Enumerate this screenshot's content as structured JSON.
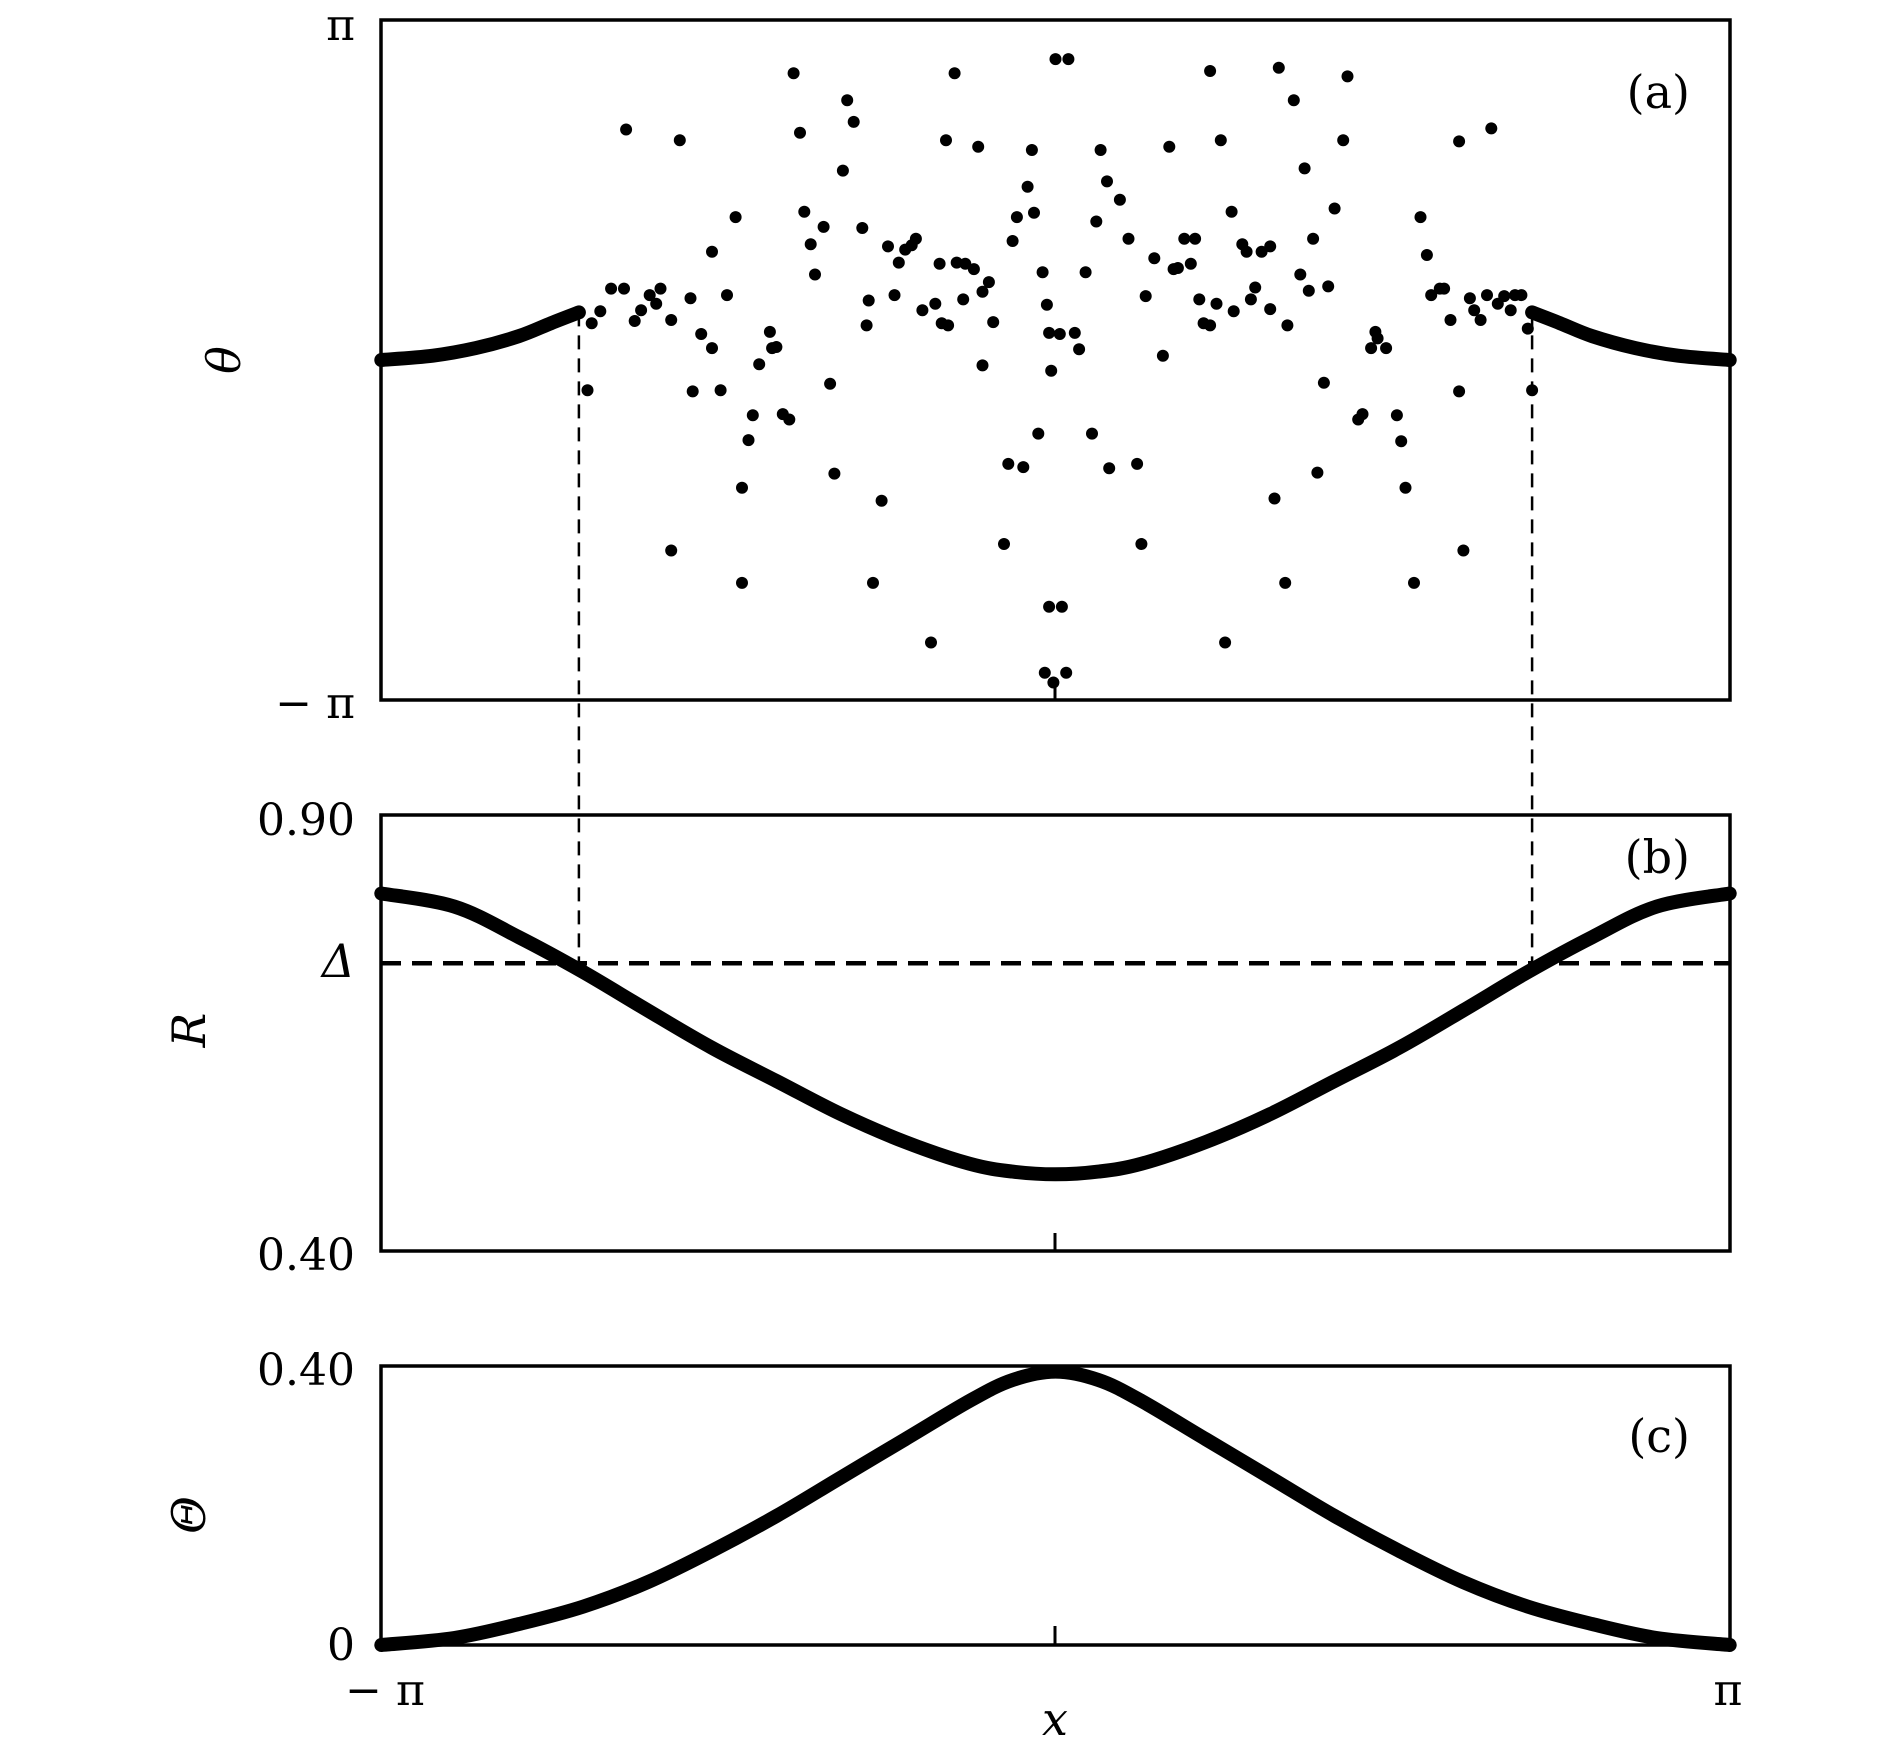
{
  "chart_data": [
    {
      "panel": "(a)",
      "type": "scatter",
      "ylabel": "θ",
      "xlabel": "",
      "yticks": [
        "π",
        "− π"
      ],
      "ylim": [
        -3.14159,
        3.14159
      ],
      "xlim": [
        -3.14159,
        3.14159
      ],
      "series": [
        {
          "kind": "line",
          "x": [
            -3.14,
            -2.9,
            -2.7,
            -2.5,
            -2.35,
            -2.22
          ],
          "y": [
            0.0,
            0.04,
            0.11,
            0.22,
            0.34,
            0.44
          ]
        },
        {
          "kind": "line",
          "x": [
            2.22,
            2.35,
            2.5,
            2.7,
            2.9,
            3.14
          ],
          "y": [
            0.44,
            0.34,
            0.22,
            0.11,
            0.04,
            0.0
          ]
        },
        {
          "kind": "points",
          "points": [
            [
              -2.18,
              -0.28
            ],
            [
              -2.16,
              0.34
            ],
            [
              -2.12,
              0.45
            ],
            [
              -2.07,
              0.66
            ],
            [
              -2.01,
              0.66
            ],
            [
              -2.0,
              2.13
            ],
            [
              -1.96,
              0.36
            ],
            [
              -1.93,
              0.46
            ],
            [
              -1.89,
              0.6
            ],
            [
              -1.86,
              0.52
            ],
            [
              -1.84,
              0.66
            ],
            [
              -1.79,
              0.37
            ],
            [
              -1.79,
              -1.76
            ],
            [
              -1.75,
              2.03
            ],
            [
              -1.7,
              0.57
            ],
            [
              -1.69,
              -0.29
            ],
            [
              -1.65,
              0.24
            ],
            [
              -1.6,
              1.0
            ],
            [
              -1.6,
              0.11
            ],
            [
              -1.56,
              -0.28
            ],
            [
              -1.53,
              0.6
            ],
            [
              -1.49,
              1.32
            ],
            [
              -1.46,
              -2.06
            ],
            [
              -1.46,
              -1.18
            ],
            [
              -1.43,
              -0.74
            ],
            [
              -1.41,
              -0.51
            ],
            [
              -1.38,
              -0.04
            ],
            [
              -1.32,
              0.11
            ],
            [
              -1.33,
              0.26
            ],
            [
              -1.3,
              0.12
            ],
            [
              -1.27,
              -0.5
            ],
            [
              -1.24,
              -0.55
            ],
            [
              -1.22,
              2.65
            ],
            [
              -1.19,
              2.1
            ],
            [
              -1.17,
              1.37
            ],
            [
              -1.14,
              1.07
            ],
            [
              -1.12,
              0.79
            ],
            [
              -1.08,
              1.23
            ],
            [
              -1.05,
              -0.22
            ],
            [
              -1.03,
              -1.05
            ],
            [
              -0.99,
              1.75
            ],
            [
              -0.97,
              2.4
            ],
            [
              -0.94,
              2.2
            ],
            [
              -0.9,
              1.22
            ],
            [
              -0.88,
              0.32
            ],
            [
              -0.87,
              0.55
            ],
            [
              -0.85,
              -2.06
            ],
            [
              -0.81,
              -1.3
            ],
            [
              -0.78,
              1.05
            ],
            [
              -0.75,
              0.6
            ],
            [
              -0.73,
              0.9
            ],
            [
              -0.7,
              1.02
            ],
            [
              -0.67,
              1.06
            ],
            [
              -0.65,
              1.12
            ],
            [
              -0.62,
              0.46
            ],
            [
              -0.58,
              -2.61
            ],
            [
              -0.56,
              0.52
            ],
            [
              -0.54,
              0.89
            ],
            [
              -0.53,
              0.34
            ],
            [
              -0.51,
              2.03
            ],
            [
              -0.5,
              0.32
            ],
            [
              -0.47,
              2.65
            ],
            [
              -0.46,
              0.9
            ],
            [
              -0.43,
              0.56
            ],
            [
              -0.42,
              0.89
            ],
            [
              -0.38,
              0.84
            ],
            [
              -0.36,
              1.97
            ],
            [
              -0.34,
              0.63
            ],
            [
              -0.34,
              -0.05
            ],
            [
              -0.31,
              0.72
            ],
            [
              -0.29,
              0.35
            ],
            [
              -0.24,
              -1.7
            ],
            [
              -0.22,
              -0.96
            ],
            [
              -0.2,
              1.1
            ],
            [
              -0.18,
              1.32
            ],
            [
              -0.15,
              -0.99
            ],
            [
              -0.13,
              1.6
            ],
            [
              -0.11,
              1.94
            ],
            [
              -0.1,
              1.36
            ],
            [
              -0.08,
              -0.68
            ],
            [
              -0.06,
              0.81
            ],
            [
              -0.04,
              0.51
            ],
            [
              -0.03,
              0.25
            ],
            [
              -0.02,
              -0.1
            ],
            [
              0.0,
              2.78
            ],
            [
              0.02,
              0.24
            ],
            [
              -0.03,
              -2.28
            ],
            [
              0.03,
              -2.28
            ],
            [
              -0.05,
              -2.89
            ],
            [
              0.05,
              -2.89
            ],
            [
              -0.01,
              -2.98
            ],
            [
              0.06,
              2.78
            ],
            [
              0.09,
              0.25
            ],
            [
              0.11,
              0.1
            ],
            [
              0.14,
              0.81
            ],
            [
              0.17,
              -0.68
            ],
            [
              0.19,
              1.28
            ],
            [
              0.21,
              1.94
            ],
            [
              0.24,
              1.65
            ],
            [
              0.25,
              -1.0
            ],
            [
              0.3,
              1.48
            ],
            [
              0.34,
              1.12
            ],
            [
              0.38,
              -0.96
            ],
            [
              0.4,
              -1.7
            ],
            [
              0.42,
              0.59
            ],
            [
              0.46,
              0.94
            ],
            [
              0.5,
              0.04
            ],
            [
              0.53,
              1.97
            ],
            [
              0.55,
              0.84
            ],
            [
              0.57,
              0.85
            ],
            [
              0.6,
              1.12
            ],
            [
              0.63,
              0.89
            ],
            [
              0.65,
              1.12
            ],
            [
              0.67,
              0.56
            ],
            [
              0.69,
              0.34
            ],
            [
              0.72,
              2.67
            ],
            [
              0.72,
              0.32
            ],
            [
              0.75,
              0.52
            ],
            [
              0.77,
              2.03
            ],
            [
              0.79,
              -2.61
            ],
            [
              0.82,
              1.37
            ],
            [
              0.83,
              0.45
            ],
            [
              0.87,
              1.07
            ],
            [
              0.89,
              1.0
            ],
            [
              0.91,
              0.56
            ],
            [
              0.93,
              0.67
            ],
            [
              0.96,
              1.0
            ],
            [
              1.0,
              0.47
            ],
            [
              1.0,
              1.05
            ],
            [
              1.02,
              -1.28
            ],
            [
              1.04,
              2.7
            ],
            [
              1.07,
              -2.06
            ],
            [
              1.08,
              0.32
            ],
            [
              1.11,
              2.4
            ],
            [
              1.14,
              0.79
            ],
            [
              1.16,
              1.77
            ],
            [
              1.18,
              0.64
            ],
            [
              1.2,
              1.12
            ],
            [
              1.22,
              -1.04
            ],
            [
              1.25,
              -0.21
            ],
            [
              1.27,
              0.68
            ],
            [
              1.3,
              1.4
            ],
            [
              1.34,
              2.03
            ],
            [
              1.36,
              2.62
            ],
            [
              1.41,
              -0.55
            ],
            [
              1.43,
              -0.5
            ],
            [
              1.47,
              0.11
            ],
            [
              1.49,
              0.26
            ],
            [
              1.5,
              0.2
            ],
            [
              1.54,
              0.11
            ],
            [
              1.59,
              -0.51
            ],
            [
              1.61,
              -0.75
            ],
            [
              1.63,
              -1.18
            ],
            [
              1.67,
              -2.06
            ],
            [
              1.7,
              1.32
            ],
            [
              1.73,
              0.97
            ],
            [
              1.75,
              0.6
            ],
            [
              1.79,
              0.66
            ],
            [
              1.81,
              0.66
            ],
            [
              1.84,
              0.37
            ],
            [
              1.88,
              2.02
            ],
            [
              1.88,
              -0.29
            ],
            [
              1.9,
              -1.76
            ],
            [
              1.93,
              0.57
            ],
            [
              1.95,
              0.46
            ],
            [
              1.98,
              0.37
            ],
            [
              2.01,
              0.6
            ],
            [
              2.03,
              2.14
            ],
            [
              2.06,
              0.52
            ],
            [
              2.09,
              0.59
            ],
            [
              2.12,
              0.46
            ],
            [
              2.14,
              0.6
            ],
            [
              2.17,
              0.6
            ],
            [
              2.2,
              0.29
            ],
            [
              2.22,
              -0.28
            ]
          ]
        }
      ]
    },
    {
      "panel": "(b)",
      "type": "line",
      "ylabel": "R",
      "xlabel": "",
      "yticks": [
        "0.90",
        "0.40"
      ],
      "ylim": [
        0.4,
        0.9
      ],
      "xlim": [
        -3.14159,
        3.14159
      ],
      "threshold_label": "Δ",
      "threshold": 0.73,
      "series": [
        {
          "x": [
            -3.14,
            -2.8,
            -2.5,
            -2.2,
            -1.9,
            -1.6,
            -1.3,
            -1.0,
            -0.7,
            -0.4,
            -0.2,
            0.0,
            0.2,
            0.4,
            0.7,
            1.0,
            1.3,
            1.6,
            1.9,
            2.2,
            2.5,
            2.8,
            3.14
          ],
          "y": [
            0.81,
            0.795,
            0.76,
            0.72,
            0.676,
            0.633,
            0.595,
            0.557,
            0.525,
            0.5,
            0.491,
            0.488,
            0.491,
            0.5,
            0.525,
            0.557,
            0.595,
            0.633,
            0.676,
            0.72,
            0.76,
            0.795,
            0.81
          ]
        }
      ]
    },
    {
      "panel": "(c)",
      "type": "line",
      "ylabel": "Θ",
      "xlabel": "x",
      "yticks": [
        "0.40",
        "0"
      ],
      "xticks": [
        "− π",
        "π"
      ],
      "ylim": [
        0,
        0.4
      ],
      "xlim": [
        -3.14159,
        3.14159
      ],
      "series": [
        {
          "x": [
            -3.14,
            -2.8,
            -2.5,
            -2.2,
            -1.9,
            -1.6,
            -1.3,
            -1.0,
            -0.7,
            -0.4,
            -0.2,
            0.0,
            0.2,
            0.4,
            0.7,
            1.0,
            1.3,
            1.6,
            1.9,
            2.2,
            2.5,
            2.8,
            3.14
          ],
          "y": [
            0.0,
            0.01,
            0.03,
            0.055,
            0.09,
            0.135,
            0.185,
            0.24,
            0.295,
            0.35,
            0.38,
            0.392,
            0.38,
            0.35,
            0.295,
            0.24,
            0.185,
            0.135,
            0.09,
            0.055,
            0.03,
            0.01,
            0.0
          ]
        }
      ]
    }
  ]
}
